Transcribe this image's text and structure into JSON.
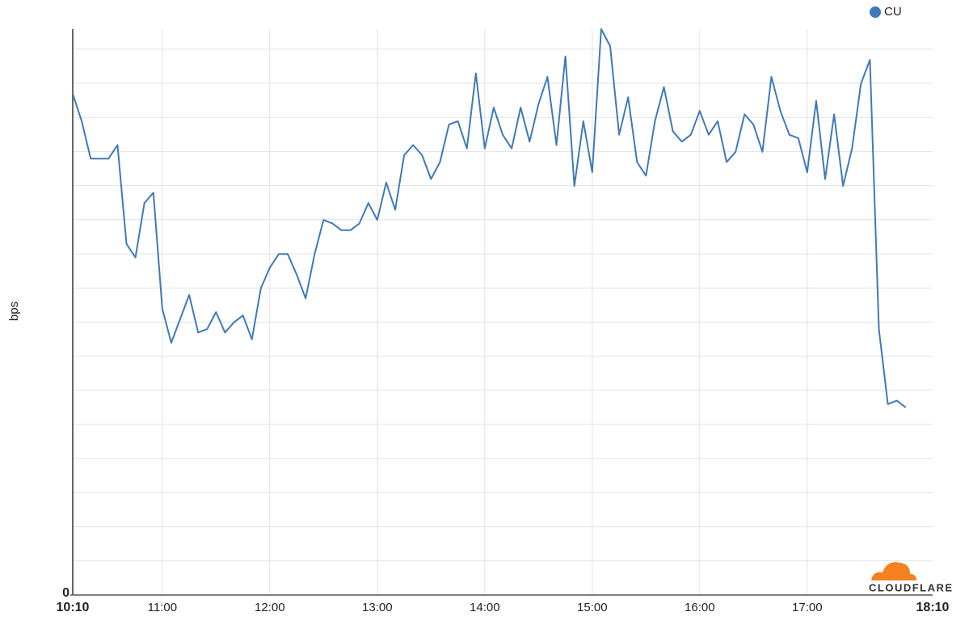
{
  "chart_data": {
    "type": "line",
    "y_label": "bps",
    "logo": "CLOUDFLARE",
    "x": [
      "10:10",
      "10:15",
      "10:20",
      "10:25",
      "10:30",
      "10:35",
      "10:40",
      "10:45",
      "10:50",
      "10:55",
      "11:00",
      "11:05",
      "11:10",
      "11:15",
      "11:20",
      "11:25",
      "11:30",
      "11:35",
      "11:40",
      "11:45",
      "11:50",
      "11:55",
      "12:00",
      "12:05",
      "12:10",
      "12:15",
      "12:20",
      "12:25",
      "12:30",
      "12:35",
      "12:40",
      "12:45",
      "12:50",
      "12:55",
      "13:00",
      "13:05",
      "13:10",
      "13:15",
      "13:20",
      "13:25",
      "13:30",
      "13:35",
      "13:40",
      "13:45",
      "13:50",
      "13:55",
      "14:00",
      "14:05",
      "14:10",
      "14:15",
      "14:20",
      "14:25",
      "14:30",
      "14:35",
      "14:40",
      "14:45",
      "14:50",
      "14:55",
      "15:00",
      "15:05",
      "15:10",
      "15:15",
      "15:20",
      "15:25",
      "15:30",
      "15:35",
      "15:40",
      "15:45",
      "15:50",
      "15:55",
      "16:00",
      "16:05",
      "16:10",
      "16:15",
      "16:20",
      "16:25",
      "16:30",
      "16:35",
      "16:40",
      "16:45",
      "16:50",
      "16:55",
      "17:00",
      "17:05",
      "17:10",
      "17:15",
      "17:20",
      "17:25",
      "17:30",
      "17:35",
      "17:40",
      "17:45",
      "17:50",
      "17:55"
    ],
    "series": [
      {
        "name": "CU",
        "color": "#3f7ab8",
        "values": [
          14.7,
          13.9,
          12.8,
          12.8,
          12.8,
          13.2,
          10.3,
          9.9,
          11.5,
          11.8,
          8.4,
          7.4,
          8.1,
          8.8,
          7.7,
          7.8,
          8.3,
          7.7,
          8.0,
          8.2,
          7.5,
          9.0,
          9.6,
          10.0,
          10.0,
          9.4,
          8.7,
          10.0,
          11.0,
          10.9,
          10.7,
          10.7,
          10.9,
          11.5,
          11.0,
          12.1,
          11.3,
          12.9,
          13.2,
          12.9,
          12.2,
          12.7,
          13.8,
          13.9,
          13.1,
          15.3,
          13.1,
          14.3,
          13.5,
          13.1,
          14.3,
          13.3,
          14.4,
          15.2,
          13.2,
          15.8,
          12.0,
          13.9,
          12.4,
          16.6,
          16.1,
          13.5,
          14.6,
          12.7,
          12.3,
          13.9,
          14.9,
          13.6,
          13.3,
          13.5,
          14.2,
          13.5,
          13.9,
          12.7,
          13.0,
          14.1,
          13.8,
          13.0,
          15.2,
          14.2,
          13.5,
          13.4,
          12.4,
          14.5,
          12.2,
          14.1,
          12.0,
          13.1,
          15.0,
          15.7,
          7.8,
          5.6,
          5.7,
          5.5
        ]
      }
    ],
    "xlim": [
      "10:10",
      "18:10"
    ],
    "xticks": [
      "10:10",
      "11:00",
      "12:00",
      "13:00",
      "14:00",
      "15:00",
      "16:00",
      "17:00",
      "18:10"
    ],
    "ylim": [
      0,
      16.6
    ],
    "yticks": [
      0
    ],
    "grid": true
  }
}
